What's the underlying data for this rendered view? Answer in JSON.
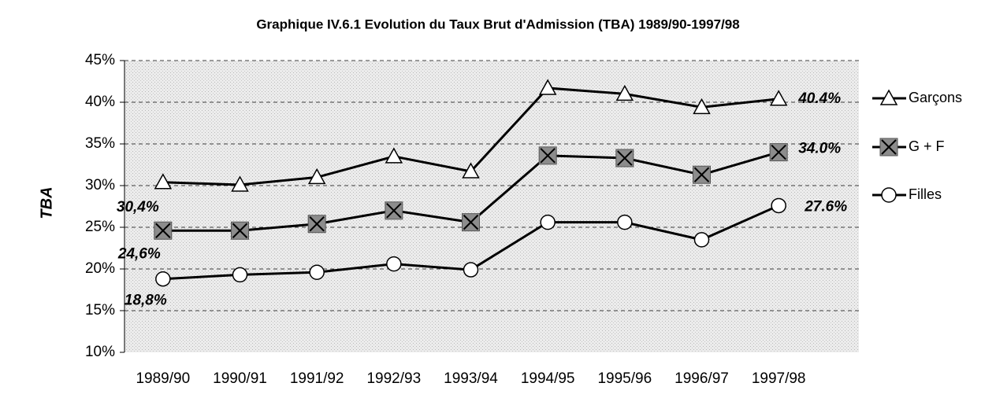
{
  "chart_data": {
    "type": "line",
    "title": "Graphique IV.6.1  Evolution du Taux Brut d'Admission (TBA) 1989/90-1997/98",
    "y_label": "TBA",
    "categories": [
      "1989/90",
      "1990/91",
      "1991/92",
      "1992/93",
      "1993/94",
      "1994/95",
      "1995/96",
      "1996/97",
      "1997/98"
    ],
    "series": [
      {
        "name": "Garçons",
        "color": "#000000",
        "marker": "triangle",
        "values": [
          30.4,
          30.1,
          31.0,
          33.5,
          31.7,
          41.7,
          41.0,
          39.4,
          40.4
        ],
        "value_labels": [
          "30,4%",
          null,
          null,
          null,
          null,
          null,
          null,
          null,
          "40.4%"
        ]
      },
      {
        "name": "G + F",
        "color": "#000000",
        "marker": "square-x",
        "values": [
          24.6,
          24.6,
          25.4,
          27.0,
          25.6,
          33.6,
          33.3,
          31.3,
          34.0
        ],
        "value_labels": [
          "24,6%",
          null,
          null,
          null,
          null,
          null,
          null,
          null,
          "34.0%"
        ]
      },
      {
        "name": "Filles",
        "color": "#000000",
        "marker": "circle",
        "values": [
          18.8,
          19.3,
          19.6,
          20.6,
          19.9,
          25.6,
          25.6,
          23.5,
          27.6
        ],
        "value_labels": [
          "18,8%",
          null,
          null,
          null,
          null,
          null,
          null,
          null,
          "27.6%"
        ]
      }
    ],
    "ylim": [
      10,
      45
    ],
    "yticks": [
      {
        "value": 10,
        "label": "10%"
      },
      {
        "value": 15,
        "label": "15%"
      },
      {
        "value": 20,
        "label": "20%"
      },
      {
        "value": 25,
        "label": "25%"
      },
      {
        "value": 30,
        "label": "30%"
      },
      {
        "value": 35,
        "label": "35%"
      },
      {
        "value": 40,
        "label": "40%"
      },
      {
        "value": 45,
        "label": "45%"
      }
    ],
    "grid": true
  }
}
